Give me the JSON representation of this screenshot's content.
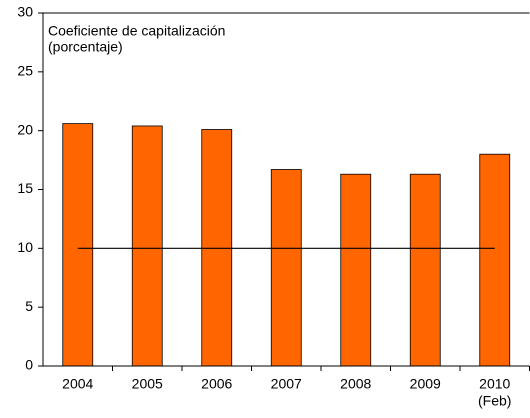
{
  "chart_data": {
    "type": "bar",
    "title": "Coeficiente de capitalización",
    "subtitle": "(porcentaje)",
    "categories": [
      "2004",
      "2005",
      "2006",
      "2007",
      "2008",
      "2009",
      "2010"
    ],
    "annotations": [
      "(Feb)"
    ],
    "values": [
      20.6,
      20.4,
      20.1,
      16.7,
      16.3,
      16.3,
      18.0
    ],
    "color": "#ff6600",
    "reference_line": 10,
    "ylim": [
      0,
      30
    ],
    "yticks": [
      0,
      5,
      10,
      15,
      20,
      25,
      30
    ],
    "grid": false
  }
}
